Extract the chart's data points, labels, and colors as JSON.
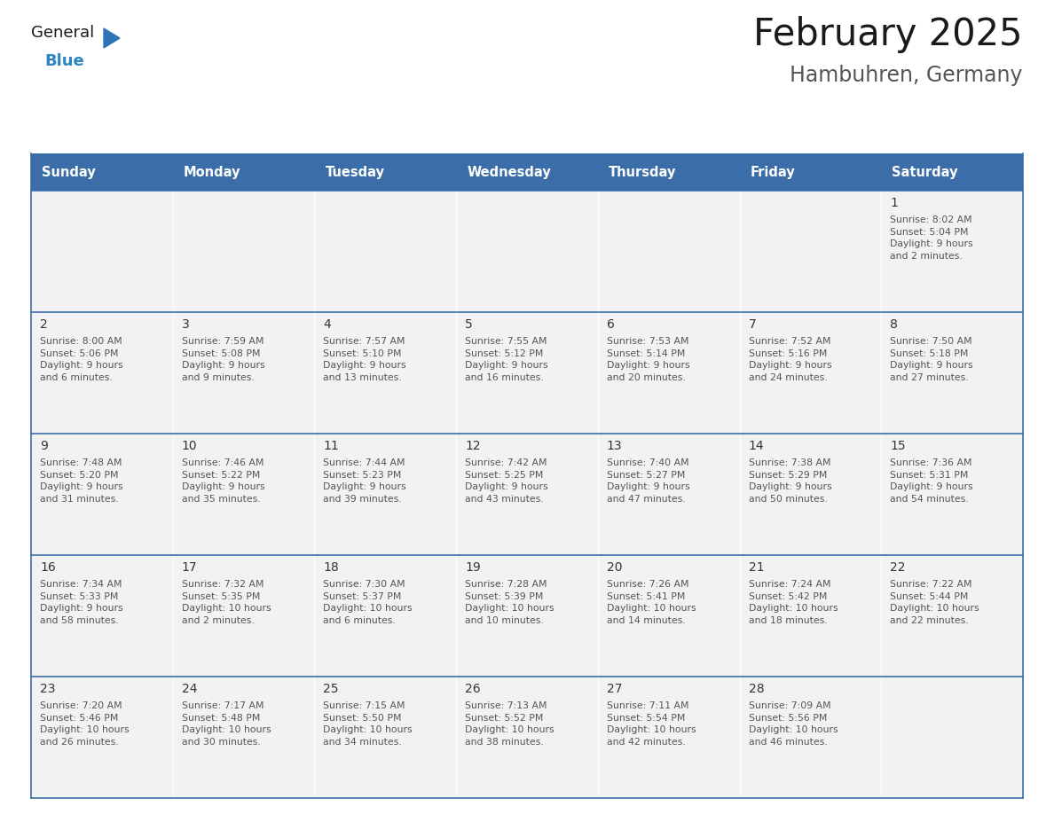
{
  "title": "February 2025",
  "subtitle": "Hambuhren, Germany",
  "header_bg": "#3B6EA8",
  "header_text_color": "#FFFFFF",
  "cell_bg": "#F2F2F2",
  "cell_bg_white": "#FFFFFF",
  "divider_color": "#3B6EA8",
  "outer_border_color": "#3B6EA8",
  "day_headers": [
    "Sunday",
    "Monday",
    "Tuesday",
    "Wednesday",
    "Thursday",
    "Friday",
    "Saturday"
  ],
  "calendar": [
    [
      {
        "day": "",
        "text": ""
      },
      {
        "day": "",
        "text": ""
      },
      {
        "day": "",
        "text": ""
      },
      {
        "day": "",
        "text": ""
      },
      {
        "day": "",
        "text": ""
      },
      {
        "day": "",
        "text": ""
      },
      {
        "day": "1",
        "text": "Sunrise: 8:02 AM\nSunset: 5:04 PM\nDaylight: 9 hours\nand 2 minutes."
      }
    ],
    [
      {
        "day": "2",
        "text": "Sunrise: 8:00 AM\nSunset: 5:06 PM\nDaylight: 9 hours\nand 6 minutes."
      },
      {
        "day": "3",
        "text": "Sunrise: 7:59 AM\nSunset: 5:08 PM\nDaylight: 9 hours\nand 9 minutes."
      },
      {
        "day": "4",
        "text": "Sunrise: 7:57 AM\nSunset: 5:10 PM\nDaylight: 9 hours\nand 13 minutes."
      },
      {
        "day": "5",
        "text": "Sunrise: 7:55 AM\nSunset: 5:12 PM\nDaylight: 9 hours\nand 16 minutes."
      },
      {
        "day": "6",
        "text": "Sunrise: 7:53 AM\nSunset: 5:14 PM\nDaylight: 9 hours\nand 20 minutes."
      },
      {
        "day": "7",
        "text": "Sunrise: 7:52 AM\nSunset: 5:16 PM\nDaylight: 9 hours\nand 24 minutes."
      },
      {
        "day": "8",
        "text": "Sunrise: 7:50 AM\nSunset: 5:18 PM\nDaylight: 9 hours\nand 27 minutes."
      }
    ],
    [
      {
        "day": "9",
        "text": "Sunrise: 7:48 AM\nSunset: 5:20 PM\nDaylight: 9 hours\nand 31 minutes."
      },
      {
        "day": "10",
        "text": "Sunrise: 7:46 AM\nSunset: 5:22 PM\nDaylight: 9 hours\nand 35 minutes."
      },
      {
        "day": "11",
        "text": "Sunrise: 7:44 AM\nSunset: 5:23 PM\nDaylight: 9 hours\nand 39 minutes."
      },
      {
        "day": "12",
        "text": "Sunrise: 7:42 AM\nSunset: 5:25 PM\nDaylight: 9 hours\nand 43 minutes."
      },
      {
        "day": "13",
        "text": "Sunrise: 7:40 AM\nSunset: 5:27 PM\nDaylight: 9 hours\nand 47 minutes."
      },
      {
        "day": "14",
        "text": "Sunrise: 7:38 AM\nSunset: 5:29 PM\nDaylight: 9 hours\nand 50 minutes."
      },
      {
        "day": "15",
        "text": "Sunrise: 7:36 AM\nSunset: 5:31 PM\nDaylight: 9 hours\nand 54 minutes."
      }
    ],
    [
      {
        "day": "16",
        "text": "Sunrise: 7:34 AM\nSunset: 5:33 PM\nDaylight: 9 hours\nand 58 minutes."
      },
      {
        "day": "17",
        "text": "Sunrise: 7:32 AM\nSunset: 5:35 PM\nDaylight: 10 hours\nand 2 minutes."
      },
      {
        "day": "18",
        "text": "Sunrise: 7:30 AM\nSunset: 5:37 PM\nDaylight: 10 hours\nand 6 minutes."
      },
      {
        "day": "19",
        "text": "Sunrise: 7:28 AM\nSunset: 5:39 PM\nDaylight: 10 hours\nand 10 minutes."
      },
      {
        "day": "20",
        "text": "Sunrise: 7:26 AM\nSunset: 5:41 PM\nDaylight: 10 hours\nand 14 minutes."
      },
      {
        "day": "21",
        "text": "Sunrise: 7:24 AM\nSunset: 5:42 PM\nDaylight: 10 hours\nand 18 minutes."
      },
      {
        "day": "22",
        "text": "Sunrise: 7:22 AM\nSunset: 5:44 PM\nDaylight: 10 hours\nand 22 minutes."
      }
    ],
    [
      {
        "day": "23",
        "text": "Sunrise: 7:20 AM\nSunset: 5:46 PM\nDaylight: 10 hours\nand 26 minutes."
      },
      {
        "day": "24",
        "text": "Sunrise: 7:17 AM\nSunset: 5:48 PM\nDaylight: 10 hours\nand 30 minutes."
      },
      {
        "day": "25",
        "text": "Sunrise: 7:15 AM\nSunset: 5:50 PM\nDaylight: 10 hours\nand 34 minutes."
      },
      {
        "day": "26",
        "text": "Sunrise: 7:13 AM\nSunset: 5:52 PM\nDaylight: 10 hours\nand 38 minutes."
      },
      {
        "day": "27",
        "text": "Sunrise: 7:11 AM\nSunset: 5:54 PM\nDaylight: 10 hours\nand 42 minutes."
      },
      {
        "day": "28",
        "text": "Sunrise: 7:09 AM\nSunset: 5:56 PM\nDaylight: 10 hours\nand 46 minutes."
      },
      {
        "day": "",
        "text": ""
      }
    ]
  ],
  "logo_text_general": "General",
  "logo_text_blue": "Blue",
  "logo_general_color": "#1a1a1a",
  "logo_blue_color": "#2E86C1",
  "logo_triangle_color": "#2E75B6"
}
